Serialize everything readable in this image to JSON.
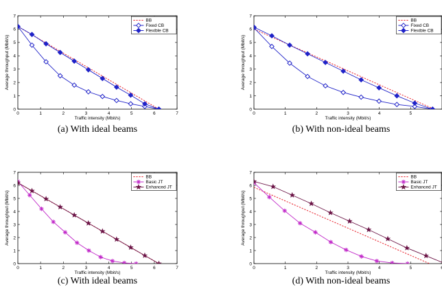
{
  "chart_data": [
    {
      "id": "a",
      "type": "line",
      "caption": "(a) With ideal beams",
      "xlabel": "Traffic intensity (Mbit/s)",
      "ylabel": "Average throughput (Mbit/s)",
      "xlim": [
        0,
        7
      ],
      "ylim": [
        0,
        7
      ],
      "xticks": [
        "0",
        "1",
        "2",
        "3",
        "4",
        "5",
        "6",
        "7"
      ],
      "yticks": [
        "0",
        "1",
        "2",
        "3",
        "4",
        "5",
        "6",
        "7"
      ],
      "grid": false,
      "legend_position": "top-right",
      "series": [
        {
          "name": "BB",
          "style": "dashed",
          "marker": "none",
          "color": "#e8202a",
          "x": [
            0,
            6.2
          ],
          "y": [
            6.2,
            0
          ]
        },
        {
          "name": "Fixed CB",
          "style": "solid",
          "marker": "diamond-open",
          "color": "#1f22c8",
          "x": [
            0,
            0.62,
            1.24,
            1.86,
            2.48,
            3.1,
            3.72,
            4.34,
            4.96,
            5.58,
            6.2
          ],
          "y": [
            6.2,
            4.8,
            3.55,
            2.5,
            1.8,
            1.3,
            0.95,
            0.65,
            0.4,
            0.2,
            0
          ]
        },
        {
          "name": "Flexible CB",
          "style": "solid",
          "marker": "diamond-filled",
          "color": "#1f22c8",
          "x": [
            0,
            0.62,
            1.24,
            1.86,
            2.48,
            3.1,
            3.72,
            4.34,
            4.96,
            5.58,
            6.2
          ],
          "y": [
            6.2,
            5.6,
            4.9,
            4.25,
            3.6,
            2.95,
            2.3,
            1.65,
            1.05,
            0.4,
            0
          ]
        }
      ]
    },
    {
      "id": "b",
      "type": "line",
      "caption": "(b) With non-ideal beams",
      "xlabel": "Traffic intensity (Mbit/s)",
      "ylabel": "Average throughput (Mbit/s)",
      "xlim": [
        0,
        6
      ],
      "ylim": [
        0,
        7
      ],
      "xticks": [
        "0",
        "1",
        "2",
        "3",
        "4",
        "5"
      ],
      "yticks": [
        "0",
        "1",
        "2",
        "3",
        "4",
        "5",
        "6",
        "7"
      ],
      "grid": false,
      "legend_position": "top-right",
      "series": [
        {
          "name": "BB",
          "style": "dashed",
          "marker": "none",
          "color": "#e8202a",
          "x": [
            0,
            5.75
          ],
          "y": [
            6.0,
            0
          ]
        },
        {
          "name": "Fixed CB",
          "style": "solid",
          "marker": "diamond-open",
          "color": "#1f22c8",
          "x": [
            0,
            0.57,
            1.14,
            1.71,
            2.28,
            2.85,
            3.42,
            3.99,
            4.56,
            5.13,
            5.7
          ],
          "y": [
            6.1,
            4.7,
            3.45,
            2.45,
            1.75,
            1.25,
            0.9,
            0.6,
            0.35,
            0.2,
            0
          ]
        },
        {
          "name": "Flexible CB",
          "style": "solid",
          "marker": "diamond-filled",
          "color": "#1f22c8",
          "x": [
            0,
            0.57,
            1.14,
            1.71,
            2.28,
            2.85,
            3.42,
            3.99,
            4.56,
            5.13,
            5.7
          ],
          "y": [
            6.15,
            5.5,
            4.8,
            4.15,
            3.5,
            2.85,
            2.2,
            1.6,
            1.0,
            0.45,
            0
          ]
        }
      ]
    },
    {
      "id": "c",
      "type": "line",
      "caption": "(c) With ideal beams",
      "xlabel": "Traffic intensity (Mbit/s)",
      "ylabel": "Average throughput (Mbit/s)",
      "xlim": [
        0,
        7
      ],
      "ylim": [
        0,
        7
      ],
      "xticks": [
        "0",
        "1",
        "2",
        "3",
        "4",
        "5",
        "6",
        "7"
      ],
      "yticks": [
        "0",
        "1",
        "2",
        "3",
        "4",
        "5",
        "6",
        "7"
      ],
      "grid": false,
      "legend_position": "top-right",
      "series": [
        {
          "name": "BB",
          "style": "dashed",
          "marker": "none",
          "color": "#e8202a",
          "x": [
            0,
            6.2
          ],
          "y": [
            6.2,
            0
          ]
        },
        {
          "name": "Basic JT",
          "style": "solid",
          "marker": "asterisk",
          "color": "#c026c8",
          "x": [
            0,
            0.52,
            1.04,
            1.56,
            2.08,
            2.6,
            3.12,
            3.64,
            4.16,
            4.68,
            5.2
          ],
          "y": [
            6.3,
            5.25,
            4.2,
            3.2,
            2.4,
            1.6,
            1.0,
            0.5,
            0.2,
            0.05,
            0
          ]
        },
        {
          "name": "Enhanced JT",
          "style": "solid",
          "marker": "star",
          "color": "#6b1446",
          "x": [
            0,
            0.62,
            1.24,
            1.86,
            2.48,
            3.1,
            3.72,
            4.34,
            4.96,
            5.58,
            6.2
          ],
          "y": [
            6.2,
            5.58,
            4.96,
            4.34,
            3.72,
            3.1,
            2.48,
            1.86,
            1.24,
            0.62,
            0
          ]
        }
      ]
    },
    {
      "id": "d",
      "type": "line",
      "caption": "(d) With non-ideal beams",
      "xlabel": "Traffic intensity (Mbit/s)",
      "ylabel": "Average throughput (Mbit/s)",
      "xlim": [
        0,
        6
      ],
      "ylim": [
        0,
        7
      ],
      "xticks": [
        "0",
        "1",
        "2",
        "3",
        "4",
        "5",
        "6"
      ],
      "yticks": [
        "0",
        "1",
        "2",
        "3",
        "4",
        "5",
        "6",
        "7"
      ],
      "grid": false,
      "legend_position": "top-right",
      "series": [
        {
          "name": "BB",
          "style": "dashed",
          "marker": "none",
          "color": "#e8202a",
          "x": [
            0,
            5.6
          ],
          "y": [
            5.85,
            0
          ]
        },
        {
          "name": "Basic JT",
          "style": "solid",
          "marker": "asterisk",
          "color": "#c026c8",
          "x": [
            0,
            0.49,
            0.98,
            1.47,
            1.96,
            2.45,
            2.94,
            3.43,
            3.92,
            4.41,
            4.9
          ],
          "y": [
            6.2,
            5.1,
            4.05,
            3.1,
            2.4,
            1.65,
            1.05,
            0.55,
            0.2,
            0.05,
            0
          ]
        },
        {
          "name": "Enhanced JT",
          "style": "solid",
          "marker": "star",
          "color": "#6b1446",
          "x": [
            0,
            0.61,
            1.22,
            1.83,
            2.44,
            3.05,
            3.66,
            4.27,
            4.88,
            5.49,
            6.1
          ],
          "y": [
            6.3,
            5.9,
            5.25,
            4.6,
            3.9,
            3.25,
            2.6,
            1.9,
            1.2,
            0.6,
            0
          ]
        }
      ]
    }
  ]
}
